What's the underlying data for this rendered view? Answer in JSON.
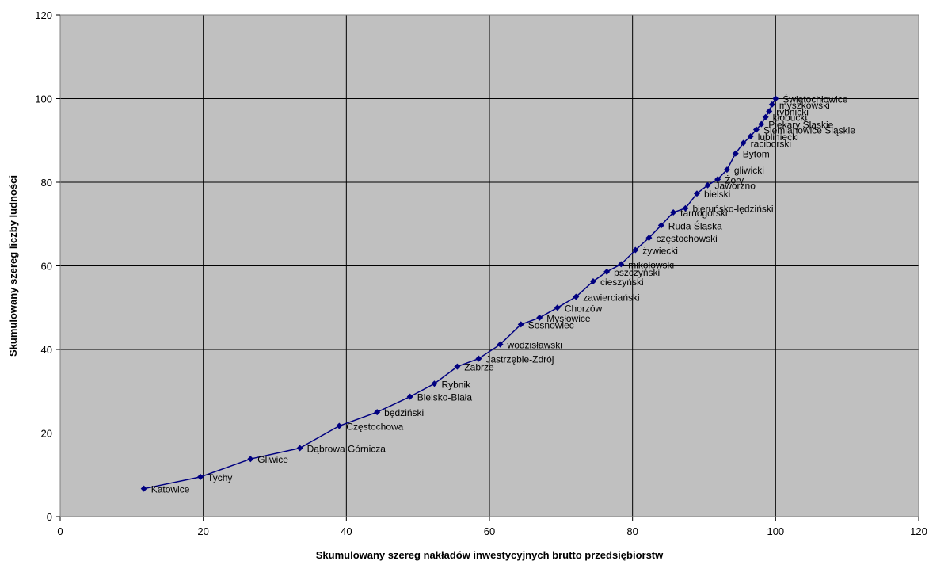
{
  "colors": {
    "plot_background": "#c0c0c0",
    "gridline": "#000000",
    "series": "#000080"
  },
  "chart_data": {
    "type": "scatter",
    "title": "",
    "xlabel": "Skumulowany szereg nakładów inwestycyjnych brutto przedsiębiorstw",
    "ylabel": "Skumulowany szereg liczby ludności",
    "xlim": [
      0,
      120
    ],
    "ylim": [
      0,
      120
    ],
    "x_ticks": [
      "0",
      "20",
      "40",
      "60",
      "80",
      "100",
      "120"
    ],
    "y_ticks": [
      "0",
      "20",
      "40",
      "60",
      "80",
      "100",
      "120"
    ],
    "grid": true,
    "legend": "none",
    "lines_connecting_points": true,
    "points": [
      {
        "label": "Katowice",
        "x": 11.7,
        "y": 6.7
      },
      {
        "label": "Tychy",
        "x": 19.6,
        "y": 9.5
      },
      {
        "label": "Gliwice",
        "x": 26.6,
        "y": 13.8
      },
      {
        "label": "Dąbrowa Górnicza",
        "x": 33.5,
        "y": 16.4
      },
      {
        "label": "Częstochowa",
        "x": 39.0,
        "y": 21.7
      },
      {
        "label": "będziński",
        "x": 44.3,
        "y": 25.0
      },
      {
        "label": "Bielsko-Biała",
        "x": 48.9,
        "y": 28.7
      },
      {
        "label": "Rybnik",
        "x": 52.3,
        "y": 31.8
      },
      {
        "label": "Zabrze",
        "x": 55.5,
        "y": 35.9
      },
      {
        "label": "Jastrzębie-Zdrój",
        "x": 58.5,
        "y": 37.8
      },
      {
        "label": "wodzisławski",
        "x": 61.5,
        "y": 41.2
      },
      {
        "label": "Sosnowiec",
        "x": 64.4,
        "y": 46.0
      },
      {
        "label": "Mysłowice",
        "x": 67.0,
        "y": 47.6
      },
      {
        "label": "Chorzów",
        "x": 69.5,
        "y": 50.0
      },
      {
        "label": "zawierciański",
        "x": 72.1,
        "y": 52.6
      },
      {
        "label": "cieszyński",
        "x": 74.5,
        "y": 56.3
      },
      {
        "label": "pszczyński",
        "x": 76.4,
        "y": 58.6
      },
      {
        "label": "mikołowski",
        "x": 78.4,
        "y": 60.4
      },
      {
        "label": "żywiecki",
        "x": 80.4,
        "y": 63.8
      },
      {
        "label": "częstochowski",
        "x": 82.3,
        "y": 66.7
      },
      {
        "label": "Ruda Śląska",
        "x": 84.0,
        "y": 69.7
      },
      {
        "label": "tarnogórski",
        "x": 85.7,
        "y": 72.8
      },
      {
        "label": "bieruńsko-lędziński",
        "x": 87.4,
        "y": 73.8
      },
      {
        "label": "bielski",
        "x": 89.0,
        "y": 77.3
      },
      {
        "label": "Jaworzno",
        "x": 90.5,
        "y": 79.3
      },
      {
        "label": "Żory",
        "x": 91.9,
        "y": 80.7
      },
      {
        "label": "gliwicki",
        "x": 93.2,
        "y": 83.0
      },
      {
        "label": "Bytom",
        "x": 94.4,
        "y": 86.9
      },
      {
        "label": "raciborski",
        "x": 95.5,
        "y": 89.4
      },
      {
        "label": "lubliniecki",
        "x": 96.5,
        "y": 91.0
      },
      {
        "label": "Siemianowice Śląskie",
        "x": 97.3,
        "y": 92.6
      },
      {
        "label": "Piekary Śląskie",
        "x": 98.0,
        "y": 93.9
      },
      {
        "label": "kłobucki",
        "x": 98.6,
        "y": 95.6
      },
      {
        "label": "rybnicki",
        "x": 99.1,
        "y": 97.0
      },
      {
        "label": "myszkowski",
        "x": 99.5,
        "y": 98.6
      },
      {
        "label": "Świętochłowice",
        "x": 100.0,
        "y": 100.0
      }
    ]
  }
}
